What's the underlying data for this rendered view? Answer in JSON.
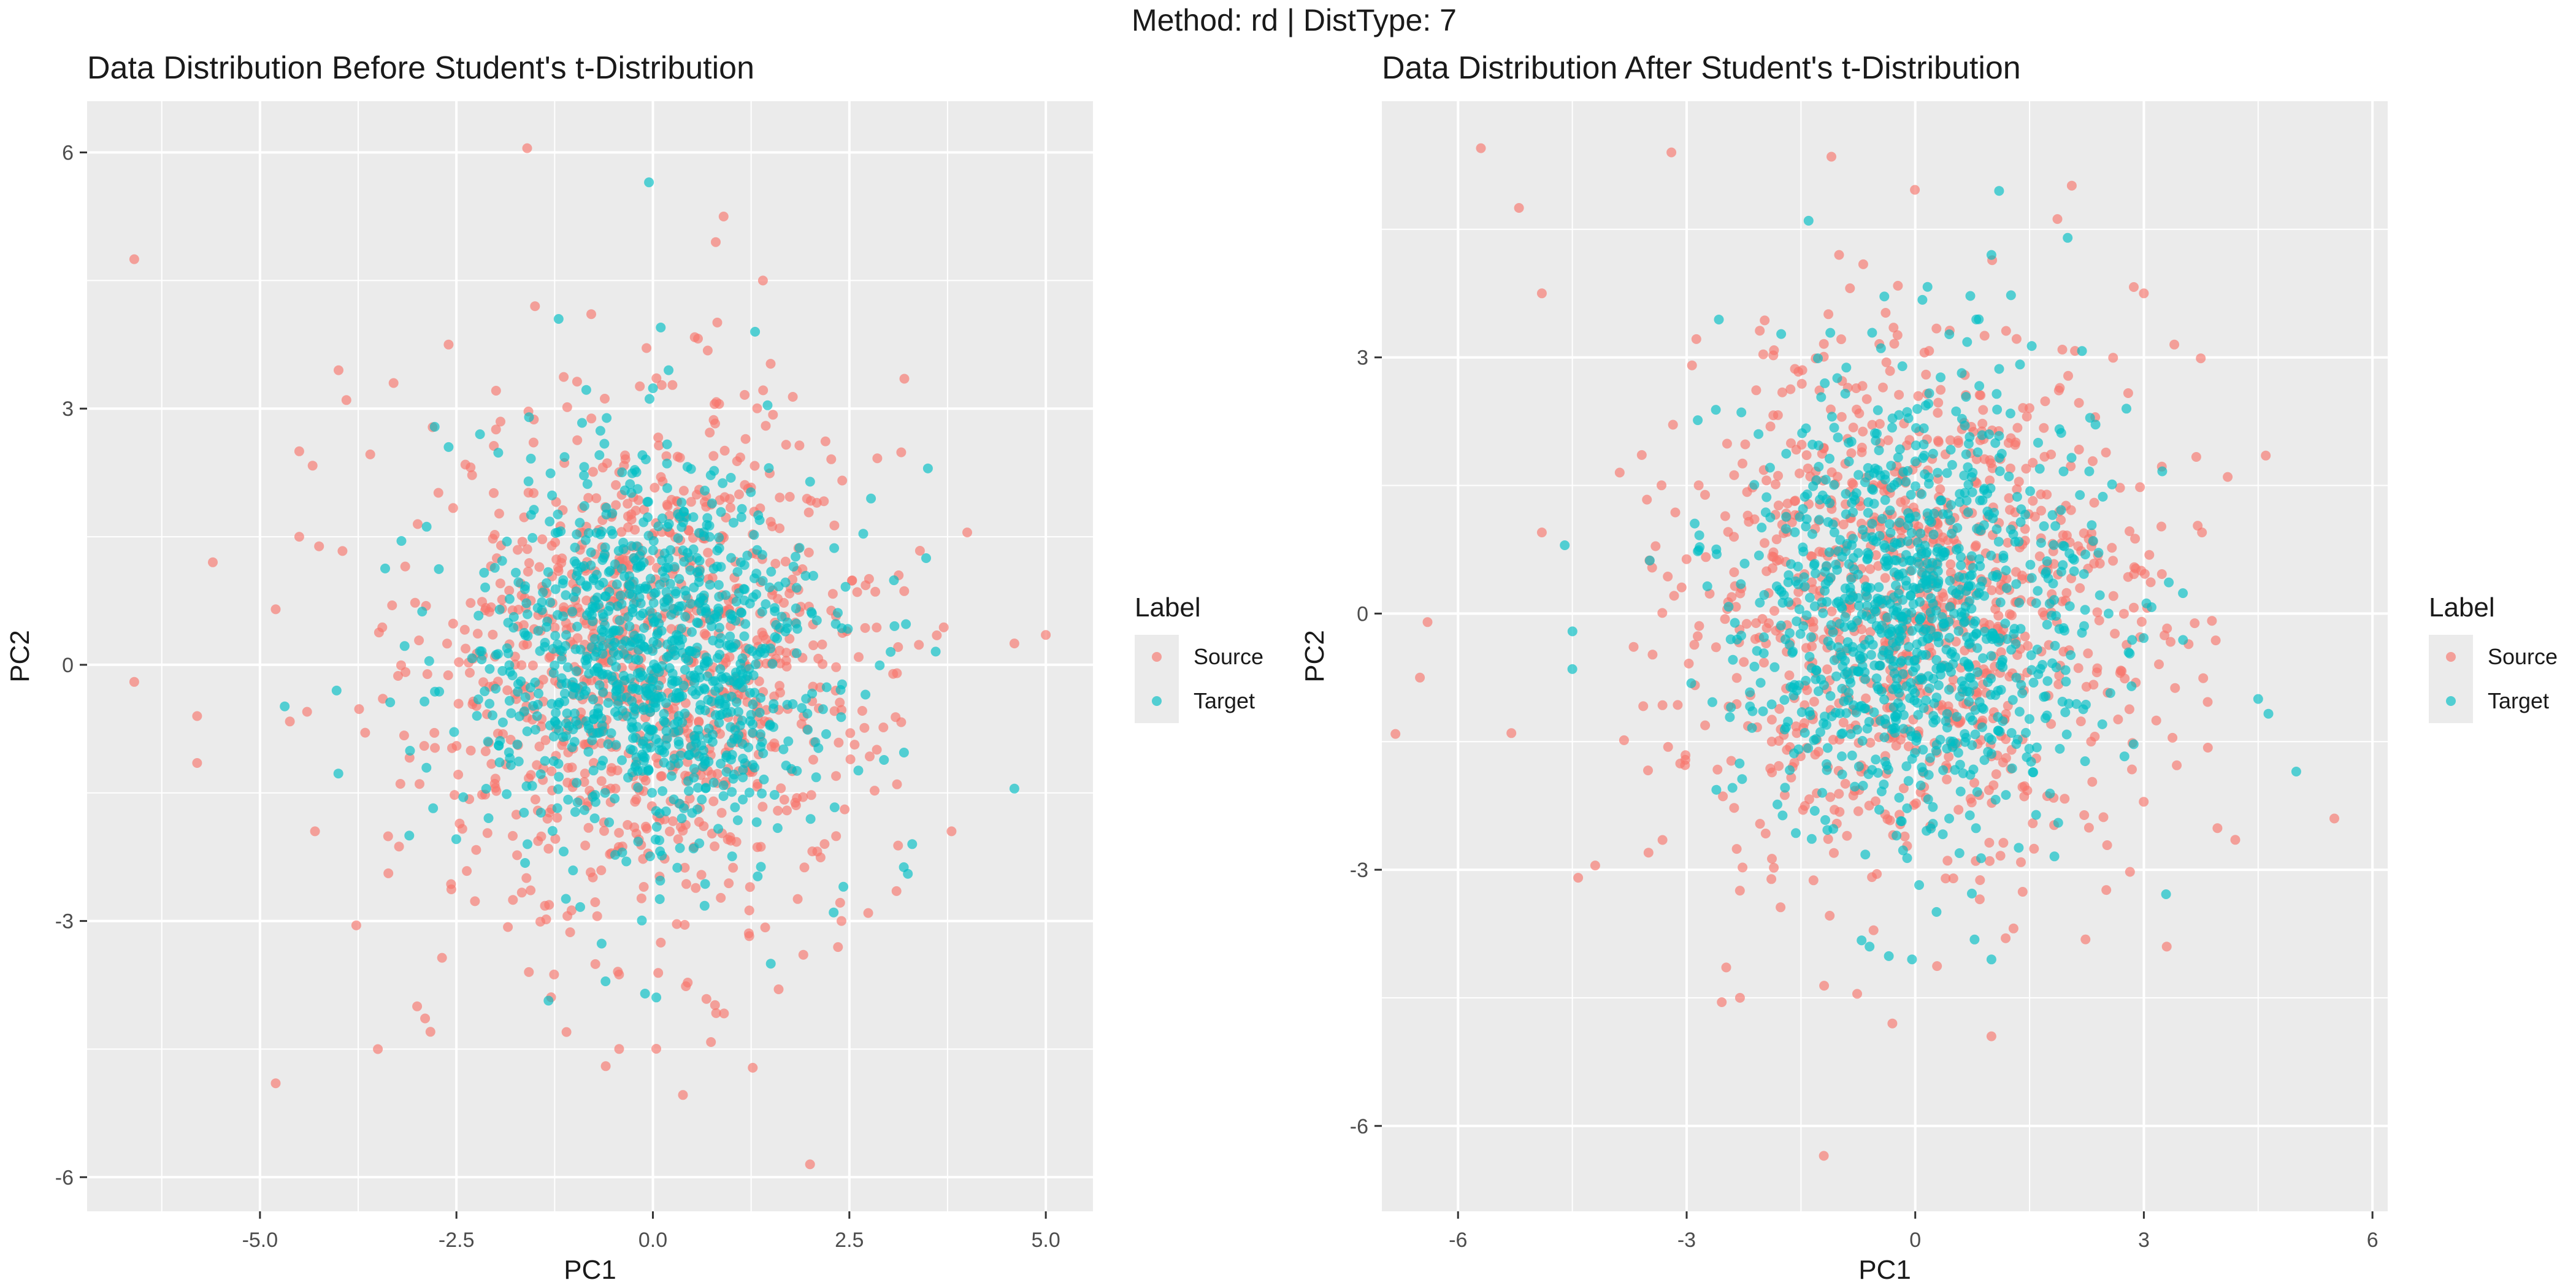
{
  "suptitle": "Method: rd | DistType: 7",
  "colors": {
    "panel_bg": "#EBEBEB",
    "grid": "#FFFFFF",
    "text": "#1A1A1A",
    "tick_text": "#4D4D4D",
    "source": "#F8766D",
    "target": "#00BFC4"
  },
  "chart_data": [
    {
      "type": "scatter",
      "title": "Data Distribution Before Student's t-Distribution",
      "xlabel": "PC1",
      "ylabel": "PC2",
      "xlim": [
        -7.2,
        5.6
      ],
      "ylim": [
        -6.4,
        6.6
      ],
      "xticks": [
        -5.0,
        -2.5,
        0.0,
        2.5,
        5.0
      ],
      "xtick_labels": [
        "-5.0",
        "-2.5",
        "0.0",
        "2.5",
        "5.0"
      ],
      "yticks": [
        -6,
        -3,
        0,
        3,
        6
      ],
      "ytick_labels": [
        "-6",
        "-3",
        "0",
        "3",
        "6"
      ],
      "grid": true,
      "legend": {
        "title": "Label",
        "position": "right",
        "entries": [
          "Source",
          "Target"
        ]
      },
      "series": [
        {
          "name": "Source",
          "color": "#F8766D",
          "distribution": {
            "n": 1000,
            "mean": [
              0,
              0
            ],
            "sd": [
              1.45,
              1.5
            ]
          },
          "points": [
            [
              -6.6,
              4.75
            ],
            [
              -6.6,
              -0.2
            ],
            [
              -5.8,
              -0.6
            ],
            [
              -5.8,
              -1.15
            ],
            [
              -5.6,
              1.2
            ],
            [
              -4.8,
              0.65
            ],
            [
              -4.8,
              -4.9
            ],
            [
              -4.5,
              2.5
            ],
            [
              -4.5,
              1.5
            ],
            [
              -4.4,
              -0.55
            ],
            [
              -4.3,
              -1.95
            ],
            [
              -4.0,
              3.45
            ],
            [
              -3.9,
              3.1
            ],
            [
              -3.5,
              -4.5
            ],
            [
              -3.3,
              3.3
            ],
            [
              -3.0,
              -4.0
            ],
            [
              -2.6,
              3.75
            ],
            [
              -1.6,
              6.05
            ],
            [
              -1.5,
              4.2
            ],
            [
              -1.1,
              -4.3
            ],
            [
              -0.6,
              -4.7
            ],
            [
              0.9,
              5.25
            ],
            [
              0.8,
              4.95
            ],
            [
              1.4,
              4.5
            ],
            [
              2.0,
              -5.85
            ],
            [
              3.2,
              3.35
            ],
            [
              4.0,
              1.55
            ],
            [
              4.6,
              0.25
            ],
            [
              5.0,
              0.35
            ],
            [
              3.8,
              -1.95
            ],
            [
              3.1,
              -2.65
            ],
            [
              1.6,
              -3.8
            ],
            [
              2.4,
              -3.0
            ]
          ]
        },
        {
          "name": "Target",
          "color": "#00BFC4",
          "distribution": {
            "n": 1000,
            "mean": [
              0,
              0
            ],
            "sd": [
              1.15,
              1.15
            ]
          },
          "points": [
            [
              -0.05,
              5.65
            ],
            [
              0.1,
              3.95
            ],
            [
              -2.6,
              2.55
            ],
            [
              -2.2,
              2.7
            ],
            [
              -1.2,
              4.05
            ],
            [
              3.5,
              2.3
            ],
            [
              4.6,
              -1.45
            ],
            [
              1.5,
              -3.5
            ],
            [
              1.3,
              3.9
            ],
            [
              -3.2,
              1.45
            ],
            [
              -3.1,
              -2.0
            ],
            [
              3.3,
              -2.1
            ],
            [
              -0.1,
              -3.85
            ],
            [
              2.3,
              -2.9
            ],
            [
              0.2,
              3.45
            ]
          ]
        }
      ]
    },
    {
      "type": "scatter",
      "title": "Data Distribution After Student's t-Distribution",
      "xlabel": "PC1",
      "ylabel": "PC2",
      "xlim": [
        -7.0,
        6.2
      ],
      "ylim": [
        -7.0,
        6.0
      ],
      "xticks": [
        -6,
        -3,
        0,
        3,
        6
      ],
      "xtick_labels": [
        "-6",
        "-3",
        "0",
        "3",
        "6"
      ],
      "yticks": [
        -6,
        -3,
        0,
        3
      ],
      "ytick_labels": [
        "-6",
        "-3",
        "0",
        "3"
      ],
      "grid": true,
      "legend": {
        "title": "Label",
        "position": "right",
        "entries": [
          "Source",
          "Target"
        ]
      },
      "series": [
        {
          "name": "Source",
          "color": "#F8766D",
          "distribution": {
            "n": 1000,
            "mean": [
              0,
              0
            ],
            "sd": [
              1.55,
              1.55
            ]
          },
          "points": [
            [
              -5.7,
              5.45
            ],
            [
              -5.2,
              4.75
            ],
            [
              -4.9,
              3.75
            ],
            [
              -4.9,
              0.95
            ],
            [
              -6.5,
              -0.75
            ],
            [
              -6.4,
              -0.1
            ],
            [
              -5.3,
              -1.4
            ],
            [
              -4.2,
              -2.95
            ],
            [
              -3.2,
              5.4
            ],
            [
              -1.1,
              5.35
            ],
            [
              -1.0,
              4.2
            ],
            [
              -2.3,
              -4.5
            ],
            [
              -1.2,
              -6.35
            ],
            [
              -0.3,
              -4.8
            ],
            [
              1.0,
              -4.95
            ],
            [
              3.3,
              -3.9
            ],
            [
              4.1,
              1.6
            ],
            [
              4.6,
              1.85
            ],
            [
              5.5,
              -2.4
            ],
            [
              4.2,
              -2.65
            ],
            [
              3.0,
              3.75
            ],
            [
              3.4,
              3.15
            ],
            [
              -3.5,
              -2.8
            ]
          ]
        },
        {
          "name": "Target",
          "color": "#00BFC4",
          "distribution": {
            "n": 1000,
            "mean": [
              0,
              0
            ],
            "sd": [
              1.2,
              1.25
            ]
          },
          "points": [
            [
              -1.4,
              4.6
            ],
            [
              1.1,
              4.95
            ],
            [
              1.0,
              4.2
            ],
            [
              2.0,
              4.4
            ],
            [
              -4.5,
              -0.65
            ],
            [
              -4.6,
              0.8
            ],
            [
              4.5,
              -1.0
            ],
            [
              5.0,
              -1.85
            ],
            [
              1.0,
              -4.05
            ],
            [
              -0.6,
              -3.9
            ]
          ]
        }
      ]
    }
  ]
}
